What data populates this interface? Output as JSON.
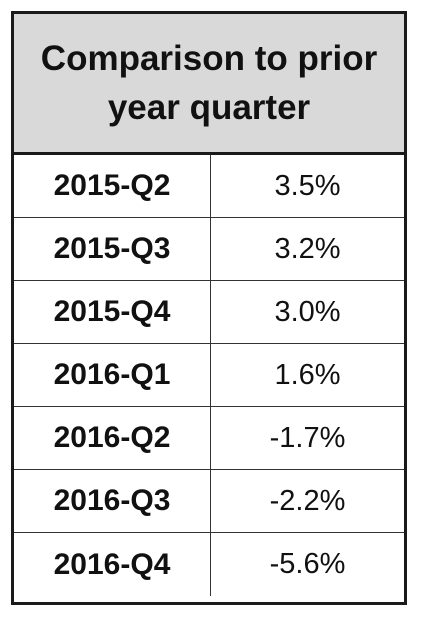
{
  "chart_data": {
    "type": "table",
    "title": "Comparison to prior year quarter",
    "rows": [
      {
        "label": "2015-Q2",
        "value": "3.5%"
      },
      {
        "label": "2015-Q3",
        "value": "3.2%"
      },
      {
        "label": "2015-Q4",
        "value": "3.0%"
      },
      {
        "label": "2016-Q1",
        "value": "1.6%"
      },
      {
        "label": "2016-Q2",
        "value": "-1.7%"
      },
      {
        "label": "2016-Q3",
        "value": "-2.2%"
      },
      {
        "label": "2016-Q4",
        "value": "-5.6%"
      }
    ],
    "categories": [
      "2015-Q2",
      "2015-Q3",
      "2015-Q4",
      "2016-Q1",
      "2016-Q2",
      "2016-Q3",
      "2016-Q4"
    ],
    "values": [
      3.5,
      3.2,
      3.0,
      1.6,
      -1.7,
      -2.2,
      -5.6
    ],
    "header_color": "#d9d9d9",
    "border_color": "#1a1a1a"
  }
}
